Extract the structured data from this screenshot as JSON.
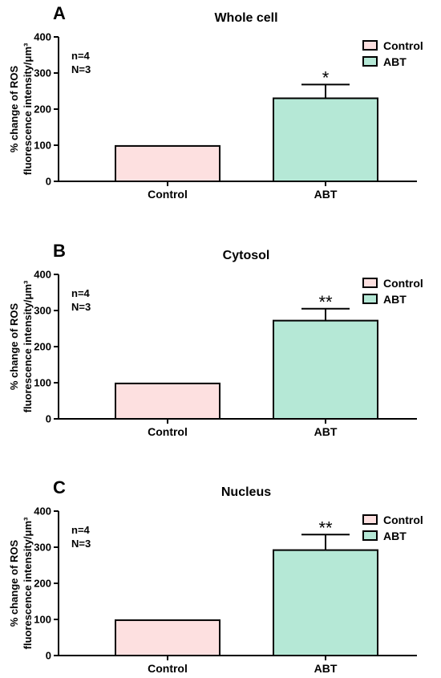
{
  "figure": {
    "series_colors": [
      "#fde0e0",
      "#b5e8d6"
    ],
    "edge_color": "#000000"
  },
  "chart_data": [
    {
      "type": "bar",
      "panel": "A",
      "title": "Whole cell",
      "ylabel": [
        "% change of ROS",
        "fluorescence intensity/μm³"
      ],
      "categories": [
        "Control",
        "ABT"
      ],
      "values": [
        98,
        230
      ],
      "errors": [
        0,
        38
      ],
      "significance": [
        "",
        "*"
      ],
      "ylim": [
        0,
        400
      ],
      "yticks": [
        0,
        100,
        200,
        300,
        400
      ],
      "legend": [
        "Control",
        "ABT"
      ],
      "legend_position": "top-right",
      "annotations": [
        "n=4",
        "N=3"
      ],
      "grid": false
    },
    {
      "type": "bar",
      "panel": "B",
      "title": "Cytosol",
      "ylabel": [
        "% change of ROS",
        "fluorescence intensity/μm³"
      ],
      "categories": [
        "Control",
        "ABT"
      ],
      "values": [
        98,
        272
      ],
      "errors": [
        0,
        33
      ],
      "significance": [
        "",
        "**"
      ],
      "ylim": [
        0,
        400
      ],
      "yticks": [
        0,
        100,
        200,
        300,
        400
      ],
      "legend": [
        "Control",
        "ABT"
      ],
      "legend_position": "top-right",
      "annotations": [
        "n=4",
        "N=3"
      ],
      "grid": false
    },
    {
      "type": "bar",
      "panel": "C",
      "title": "Nucleus",
      "ylabel": [
        "% change of ROS",
        "fluorescence intensity/μm³"
      ],
      "categories": [
        "Control",
        "ABT"
      ],
      "values": [
        98,
        292
      ],
      "errors": [
        0,
        43
      ],
      "significance": [
        "",
        "**"
      ],
      "ylim": [
        0,
        400
      ],
      "yticks": [
        0,
        100,
        200,
        300,
        400
      ],
      "legend": [
        "Control",
        "ABT"
      ],
      "legend_position": "top-right",
      "annotations": [
        "n=4",
        "N=3"
      ],
      "grid": false
    }
  ]
}
